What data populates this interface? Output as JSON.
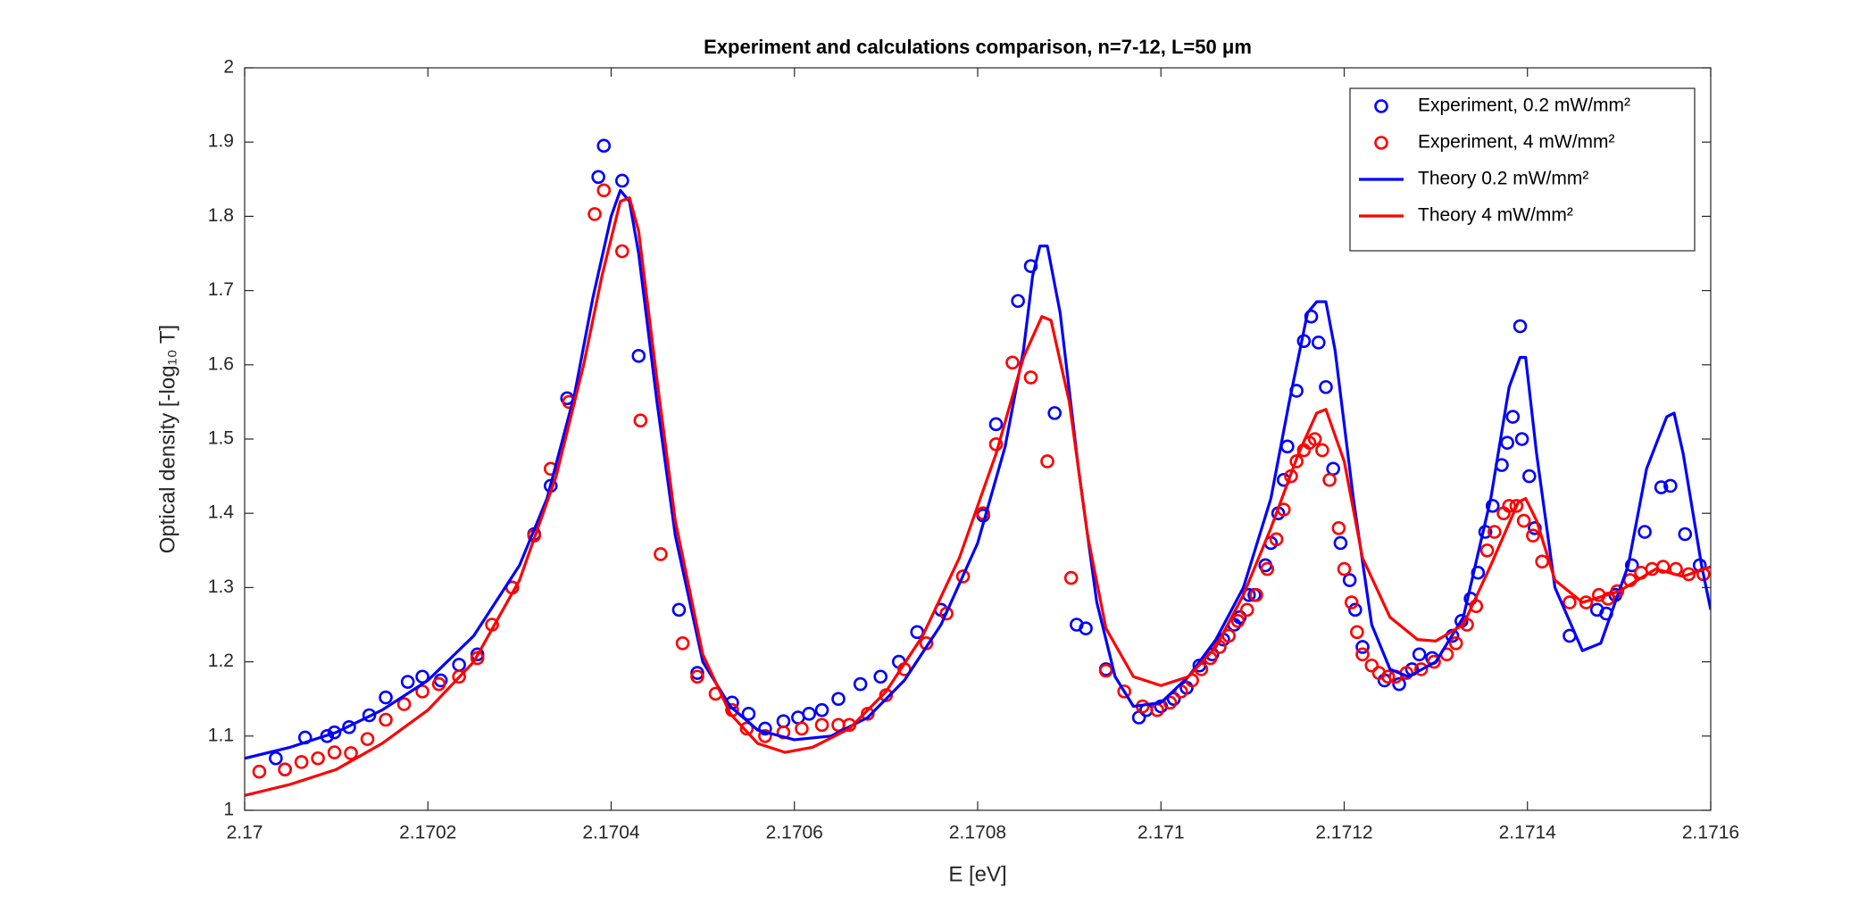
{
  "chart_data": {
    "type": "line",
    "title": "Experiment and calculations comparison, n=7-12, L=50 μm",
    "x_label": "E [eV]",
    "y_label": "Optical density [-log₁₀ T]",
    "xlim": [
      2.17,
      2.1716
    ],
    "ylim": [
      1,
      2
    ],
    "xticks": [
      2.17,
      2.1702,
      2.1704,
      2.1706,
      2.1708,
      2.171,
      2.1712,
      2.1714,
      2.1716
    ],
    "yticks": [
      1,
      1.1,
      1.2,
      1.3,
      1.4,
      1.5,
      1.6,
      1.7,
      1.8,
      1.9,
      2
    ],
    "grid": false,
    "legend": "northeast",
    "series": [
      {
        "name": "Experiment, 0.2 mW/mm²",
        "color": "#0000ff",
        "mode": "markers",
        "x": [
          2.170034,
          2.170044,
          2.170066,
          2.17009,
          2.170098,
          2.170114,
          2.170136,
          2.170154,
          2.170178,
          2.170194,
          2.170214,
          2.170234,
          2.170254,
          2.170292,
          2.170316,
          2.170334,
          2.170352,
          2.170386,
          2.170392,
          2.170412,
          2.17043,
          2.170474,
          2.170494,
          2.170532,
          2.17055,
          2.170568,
          2.170588,
          2.170604,
          2.170616,
          2.17063,
          2.170648,
          2.170672,
          2.170694,
          2.170714,
          2.170734,
          2.17076,
          2.170806,
          2.17082,
          2.170844,
          2.170858,
          2.170884,
          2.170908,
          2.170918,
          2.17094,
          2.170976,
          2.170984,
          2.171,
          2.171014,
          2.171028,
          2.171042,
          2.171056,
          2.171068,
          2.17108,
          2.171086,
          2.171096,
          2.171102,
          2.171114,
          2.17112,
          2.171128,
          2.171134,
          2.171138,
          2.171148,
          2.171156,
          2.171164,
          2.171172,
          2.17118,
          2.171188,
          2.171196,
          2.171206,
          2.171212,
          2.17122,
          2.171244,
          2.17126,
          2.171274,
          2.171282,
          2.171296,
          2.171318,
          2.171328,
          2.171338,
          2.171346,
          2.171354,
          2.171362,
          2.171372,
          2.171378,
          2.171384,
          2.171392,
          2.171394,
          2.171402,
          2.171408,
          2.171446,
          2.171476,
          2.171486,
          2.171496,
          2.171514,
          2.171528,
          2.171546,
          2.171556,
          2.171572,
          2.171588
        ],
        "values": [
          1.07,
          1.055,
          1.098,
          1.1,
          1.105,
          1.112,
          1.128,
          1.152,
          1.173,
          1.18,
          1.175,
          1.196,
          1.21,
          1.3,
          1.372,
          1.437,
          1.555,
          1.853,
          1.895,
          1.848,
          1.612,
          1.27,
          1.185,
          1.145,
          1.13,
          1.11,
          1.12,
          1.125,
          1.13,
          1.135,
          1.15,
          1.17,
          1.18,
          1.2,
          1.24,
          1.27,
          1.397,
          1.52,
          1.686,
          1.733,
          1.535,
          1.25,
          1.245,
          1.19,
          1.125,
          1.135,
          1.14,
          1.15,
          1.165,
          1.195,
          1.21,
          1.23,
          1.25,
          1.26,
          1.29,
          1.29,
          1.33,
          1.36,
          1.4,
          1.445,
          1.49,
          1.565,
          1.632,
          1.665,
          1.63,
          1.57,
          1.46,
          1.36,
          1.31,
          1.27,
          1.22,
          1.175,
          1.17,
          1.19,
          1.21,
          1.205,
          1.235,
          1.255,
          1.285,
          1.32,
          1.375,
          1.41,
          1.465,
          1.495,
          1.53,
          1.652,
          1.5,
          1.45,
          1.38,
          1.235,
          1.27,
          1.265,
          1.29,
          1.33,
          1.375,
          1.435,
          1.437,
          1.372,
          1.33
        ]
      },
      {
        "name": "Experiment, 4 mW/mm²",
        "color": "#ff0000",
        "mode": "markers",
        "x": [
          2.170016,
          2.170044,
          2.170062,
          2.17008,
          2.170098,
          2.170116,
          2.170134,
          2.170154,
          2.170174,
          2.170194,
          2.170212,
          2.170234,
          2.170254,
          2.17027,
          2.170292,
          2.170316,
          2.170334,
          2.170354,
          2.170382,
          2.170392,
          2.170412,
          2.170432,
          2.170454,
          2.170478,
          2.170494,
          2.170514,
          2.170532,
          2.170548,
          2.170568,
          2.170588,
          2.170608,
          2.17063,
          2.170648,
          2.17066,
          2.17068,
          2.1707,
          2.17072,
          2.170744,
          2.170766,
          2.170784,
          2.170806,
          2.17082,
          2.170838,
          2.170858,
          2.170876,
          2.170902,
          2.17094,
          2.17096,
          2.17098,
          2.170996,
          2.17101,
          2.171022,
          2.171034,
          2.171044,
          2.171054,
          2.171064,
          2.171074,
          2.171084,
          2.171094,
          2.171104,
          2.171116,
          2.171126,
          2.171134,
          2.171142,
          2.171148,
          2.171156,
          2.171162,
          2.171168,
          2.171176,
          2.171184,
          2.171194,
          2.1712,
          2.171208,
          2.171214,
          2.17122,
          2.17123,
          2.171238,
          2.171248,
          2.171256,
          2.171268,
          2.171284,
          2.171298,
          2.171312,
          2.171322,
          2.171334,
          2.171344,
          2.171356,
          2.171364,
          2.171374,
          2.17138,
          2.171388,
          2.171396,
          2.171406,
          2.171416,
          2.171446,
          2.171464,
          2.171478,
          2.171488,
          2.171498,
          2.171512,
          2.171524,
          2.171536,
          2.171548,
          2.171562,
          2.171576,
          2.171592
        ],
        "values": [
          1.052,
          1.055,
          1.065,
          1.07,
          1.078,
          1.077,
          1.096,
          1.122,
          1.143,
          1.16,
          1.17,
          1.18,
          1.205,
          1.25,
          1.3,
          1.37,
          1.46,
          1.55,
          1.803,
          1.835,
          1.753,
          1.525,
          1.345,
          1.225,
          1.18,
          1.157,
          1.135,
          1.11,
          1.1,
          1.105,
          1.11,
          1.115,
          1.115,
          1.115,
          1.13,
          1.155,
          1.19,
          1.225,
          1.265,
          1.315,
          1.4,
          1.493,
          1.603,
          1.583,
          1.47,
          1.313,
          1.188,
          1.16,
          1.14,
          1.135,
          1.145,
          1.16,
          1.175,
          1.19,
          1.205,
          1.22,
          1.235,
          1.255,
          1.27,
          1.29,
          1.325,
          1.365,
          1.405,
          1.45,
          1.47,
          1.485,
          1.495,
          1.5,
          1.485,
          1.445,
          1.38,
          1.325,
          1.28,
          1.24,
          1.21,
          1.195,
          1.185,
          1.18,
          1.18,
          1.185,
          1.19,
          1.2,
          1.21,
          1.225,
          1.25,
          1.275,
          1.35,
          1.375,
          1.4,
          1.41,
          1.41,
          1.39,
          1.37,
          1.335,
          1.28,
          1.28,
          1.29,
          1.285,
          1.295,
          1.31,
          1.32,
          1.325,
          1.328,
          1.325,
          1.318,
          1.318
        ]
      },
      {
        "name": "Theory 0.2 mW/mm²",
        "color": "#0000ff",
        "mode": "line",
        "x": [
          2.17,
          2.17005,
          2.1701,
          2.17015,
          2.1702,
          2.17025,
          2.1703,
          2.17033,
          2.17036,
          2.17038,
          2.1704,
          2.17041,
          2.17042,
          2.17043,
          2.17045,
          2.17047,
          2.1705,
          2.17053,
          2.17056,
          2.1706,
          2.17064,
          2.17068,
          2.17072,
          2.17076,
          2.1708,
          2.17083,
          2.17085,
          2.17086,
          2.170868,
          2.170876,
          2.17089,
          2.17091,
          2.17093,
          2.17095,
          2.17097,
          2.171,
          2.17103,
          2.17106,
          2.17109,
          2.17112,
          2.17114,
          2.17116,
          2.17117,
          2.17118,
          2.17119,
          2.17121,
          2.17123,
          2.17125,
          2.17127,
          2.1713,
          2.17133,
          2.17136,
          2.17138,
          2.171392,
          2.171398,
          2.17141,
          2.17143,
          2.17146,
          2.17148,
          2.17151,
          2.17153,
          2.171552,
          2.17156,
          2.17157,
          2.17159,
          2.1716
        ],
        "values": [
          1.07,
          1.085,
          1.105,
          1.135,
          1.175,
          1.235,
          1.33,
          1.42,
          1.56,
          1.69,
          1.8,
          1.835,
          1.82,
          1.75,
          1.55,
          1.37,
          1.2,
          1.14,
          1.108,
          1.095,
          1.1,
          1.125,
          1.175,
          1.25,
          1.36,
          1.49,
          1.62,
          1.72,
          1.76,
          1.76,
          1.67,
          1.46,
          1.28,
          1.18,
          1.14,
          1.145,
          1.18,
          1.23,
          1.3,
          1.42,
          1.55,
          1.67,
          1.685,
          1.685,
          1.62,
          1.42,
          1.25,
          1.19,
          1.18,
          1.2,
          1.26,
          1.42,
          1.57,
          1.61,
          1.61,
          1.48,
          1.3,
          1.215,
          1.225,
          1.33,
          1.46,
          1.53,
          1.535,
          1.48,
          1.33,
          1.27
        ]
      },
      {
        "name": "Theory 4 mW/mm²",
        "color": "#ff0000",
        "mode": "line",
        "x": [
          2.17,
          2.17005,
          2.1701,
          2.17015,
          2.1702,
          2.17025,
          2.1703,
          2.17034,
          2.17037,
          2.17039,
          2.17041,
          2.17042,
          2.17043,
          2.17045,
          2.17047,
          2.1705,
          2.17053,
          2.17056,
          2.17059,
          2.17062,
          2.17066,
          2.1707,
          2.17074,
          2.17078,
          2.17082,
          2.17085,
          2.17087,
          2.17088,
          2.1709,
          2.17092,
          2.17094,
          2.17097,
          2.171,
          2.17103,
          2.17106,
          2.17109,
          2.17112,
          2.17115,
          2.17117,
          2.17118,
          2.1712,
          2.17122,
          2.17125,
          2.17128,
          2.1713,
          2.17133,
          2.17136,
          2.17139,
          2.171398,
          2.17141,
          2.17143,
          2.17146,
          2.1715,
          2.17154,
          2.17157,
          2.1716
        ],
        "values": [
          1.02,
          1.035,
          1.055,
          1.09,
          1.135,
          1.2,
          1.31,
          1.45,
          1.6,
          1.72,
          1.82,
          1.825,
          1.78,
          1.58,
          1.39,
          1.21,
          1.13,
          1.09,
          1.078,
          1.085,
          1.11,
          1.16,
          1.235,
          1.34,
          1.48,
          1.61,
          1.665,
          1.66,
          1.55,
          1.37,
          1.245,
          1.18,
          1.168,
          1.18,
          1.22,
          1.29,
          1.38,
          1.48,
          1.535,
          1.54,
          1.47,
          1.34,
          1.26,
          1.23,
          1.228,
          1.25,
          1.33,
          1.415,
          1.42,
          1.39,
          1.31,
          1.28,
          1.295,
          1.325,
          1.315,
          1.328
        ]
      }
    ]
  }
}
